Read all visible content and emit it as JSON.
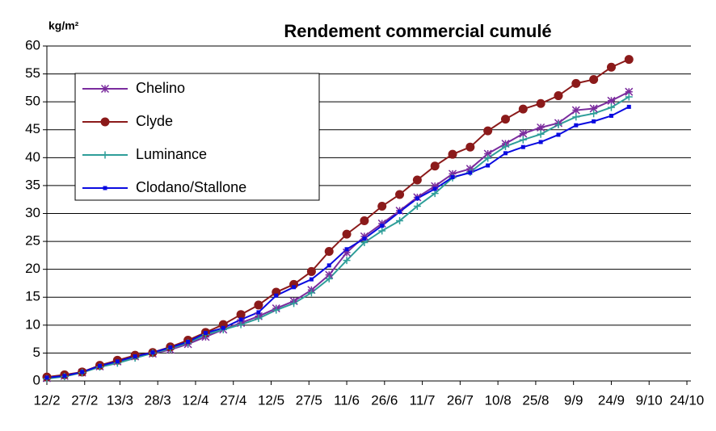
{
  "chart_data": {
    "type": "line",
    "title": "Rendement commercial cumulé",
    "y_label": "kg/m²",
    "x": [
      "12/2",
      "19/2",
      "26/2",
      "5/3",
      "12/3",
      "19/3",
      "26/3",
      "2/4",
      "9/4",
      "16/4",
      "23/4",
      "30/4",
      "7/5",
      "14/5",
      "21/5",
      "28/5",
      "4/6",
      "11/6",
      "18/6",
      "25/6",
      "2/7",
      "9/7",
      "16/7",
      "23/7",
      "30/7",
      "6/8",
      "13/8",
      "20/8",
      "27/8",
      "3/9",
      "10/9",
      "17/9",
      "24/9",
      "1/10"
    ],
    "xlim": [
      "12/2",
      "24/10"
    ],
    "xticks": [
      "12/2",
      "27/2",
      "13/3",
      "28/3",
      "12/4",
      "27/4",
      "12/5",
      "27/5",
      "11/6",
      "26/6",
      "11/7",
      "26/7",
      "10/8",
      "25/8",
      "9/9",
      "24/9",
      "9/10",
      "24/10"
    ],
    "ylim": [
      0,
      60
    ],
    "yticks": [
      0,
      5,
      10,
      15,
      20,
      25,
      30,
      35,
      40,
      45,
      50,
      55,
      60
    ],
    "grid": true,
    "legend": "upper left",
    "series": [
      {
        "name": "Chelino",
        "color": "#7b2c9e",
        "marker": "asterisk",
        "values": [
          0.5,
          0.9,
          1.5,
          2.6,
          3.5,
          4.4,
          4.9,
          5.6,
          6.6,
          7.9,
          9.2,
          10.4,
          11.6,
          13.0,
          14.3,
          16.3,
          19.0,
          23.0,
          25.9,
          28.2,
          30.5,
          32.9,
          34.9,
          37.1,
          38.0,
          40.7,
          42.5,
          44.3,
          45.4,
          46.2,
          48.5,
          48.8,
          50.2,
          51.8
        ]
      },
      {
        "name": "Clyde",
        "color": "#8b1a1a",
        "marker": "circle",
        "values": [
          0.7,
          1.1,
          1.6,
          2.8,
          3.7,
          4.6,
          5.1,
          6.1,
          7.3,
          8.7,
          10.1,
          11.9,
          13.6,
          15.9,
          17.3,
          19.6,
          23.2,
          26.3,
          28.7,
          31.3,
          33.4,
          36.0,
          38.5,
          40.6,
          41.9,
          44.8,
          46.9,
          48.7,
          49.7,
          51.1,
          53.3,
          54.0,
          56.2,
          57.6
        ]
      },
      {
        "name": "Luminance",
        "color": "#2e9e99",
        "marker": "plus",
        "values": [
          0.4,
          0.8,
          1.5,
          2.5,
          3.2,
          4.1,
          5.0,
          5.8,
          6.8,
          8.3,
          9.2,
          10.1,
          11.2,
          12.7,
          13.9,
          15.8,
          18.3,
          21.6,
          24.8,
          26.9,
          28.7,
          31.3,
          33.6,
          36.4,
          37.4,
          39.9,
          42.0,
          43.2,
          44.2,
          45.9,
          47.3,
          47.9,
          49.0,
          50.9
        ]
      },
      {
        "name": "Clodano/Stallone",
        "color": "#0a0ae0",
        "marker": "square",
        "values": [
          0.6,
          0.9,
          1.6,
          2.7,
          3.5,
          4.4,
          5.1,
          6.0,
          7.0,
          8.6,
          9.5,
          11.0,
          12.3,
          15.3,
          16.8,
          18.2,
          20.7,
          23.6,
          25.5,
          27.8,
          30.3,
          32.7,
          34.4,
          36.5,
          37.3,
          38.6,
          40.8,
          41.9,
          42.8,
          44.1,
          45.8,
          46.5,
          47.5,
          49.1
        ]
      }
    ]
  }
}
